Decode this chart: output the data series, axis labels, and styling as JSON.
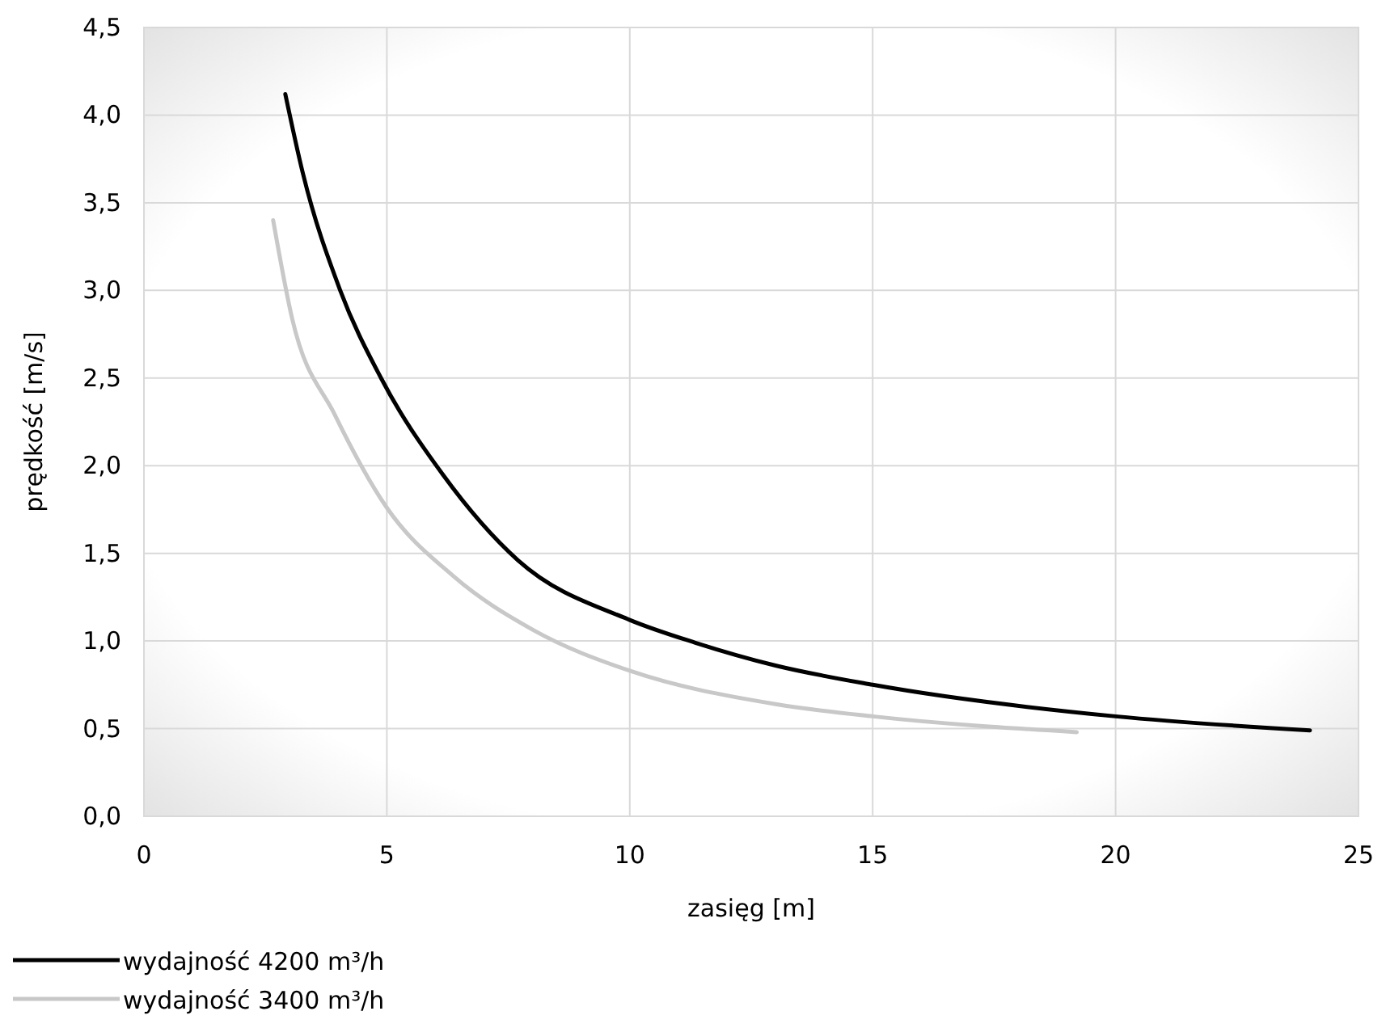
{
  "chart_data": {
    "type": "line",
    "xlabel": "zasięg [m]",
    "ylabel": "prędkość [m/s]",
    "xlim": [
      0,
      25
    ],
    "xticks": [
      0,
      5,
      10,
      15,
      20,
      25
    ],
    "ylim": [
      0,
      4.5
    ],
    "yticks": [
      {
        "value": 0,
        "label": "0,0"
      },
      {
        "value": 0.5,
        "label": "0,5"
      },
      {
        "value": 1,
        "label": "1,0"
      },
      {
        "value": 1.5,
        "label": "1,5"
      },
      {
        "value": 2,
        "label": "2,0"
      },
      {
        "value": 2.5,
        "label": "2,5"
      },
      {
        "value": 3,
        "label": "3,0"
      },
      {
        "value": 3.5,
        "label": "3,5"
      },
      {
        "value": 4,
        "label": "4,0"
      },
      {
        "value": 4.5,
        "label": "4,5"
      }
    ],
    "grid": true,
    "legend": "bottom",
    "marker": "none",
    "line_style": "solid",
    "series": [
      {
        "name": "wydajność 4200 m³/h",
        "color": "#000000",
        "x": [
          2.91,
          3.27,
          4.04,
          4.88,
          6.15,
          7.7,
          10,
          11.35,
          13,
          15,
          20,
          24
        ],
        "values": [
          4.12,
          3.67,
          3.0,
          2.5,
          1.95,
          1.46,
          1.12,
          0.99,
          0.86,
          0.75,
          0.57,
          0.49
        ]
      },
      {
        "name": "wydajność 3400 m³/h",
        "color": "#c8c8c8",
        "x": [
          2.66,
          3.05,
          3.93,
          5,
          6.37,
          8.03,
          10,
          13,
          15,
          19.2
        ],
        "values": [
          3.4,
          2.84,
          2.29,
          1.76,
          1.37,
          1.06,
          0.83,
          0.64,
          0.57,
          0.48
        ]
      }
    ]
  }
}
